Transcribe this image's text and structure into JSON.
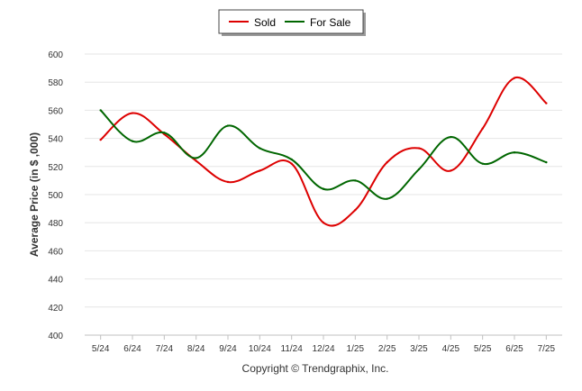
{
  "chart_data": {
    "type": "line",
    "title": "",
    "xlabel": "",
    "ylabel": "Average Price (in $ ,000)",
    "categories": [
      "5/24",
      "6/24",
      "7/24",
      "8/24",
      "9/24",
      "10/24",
      "11/24",
      "12/24",
      "1/25",
      "2/25",
      "3/25",
      "4/25",
      "5/25",
      "6/25",
      "7/25"
    ],
    "yticks": [
      400,
      420,
      440,
      460,
      480,
      500,
      520,
      540,
      560,
      580,
      600
    ],
    "ylim": [
      400,
      600
    ],
    "grid": true,
    "legend_position": "top-center",
    "series": [
      {
        "name": "Sold",
        "color": "#dd0000",
        "values": [
          539,
          558,
          543,
          524,
          509,
          517,
          522,
          480,
          489,
          523,
          533,
          517,
          547,
          583,
          565
        ]
      },
      {
        "name": "For Sale",
        "color": "#006600",
        "values": [
          560,
          538,
          544,
          526,
          549,
          533,
          525,
          504,
          510,
          497,
          518,
          541,
          522,
          530,
          523
        ]
      }
    ],
    "credit": "Copyright © Trendgraphix, Inc."
  }
}
